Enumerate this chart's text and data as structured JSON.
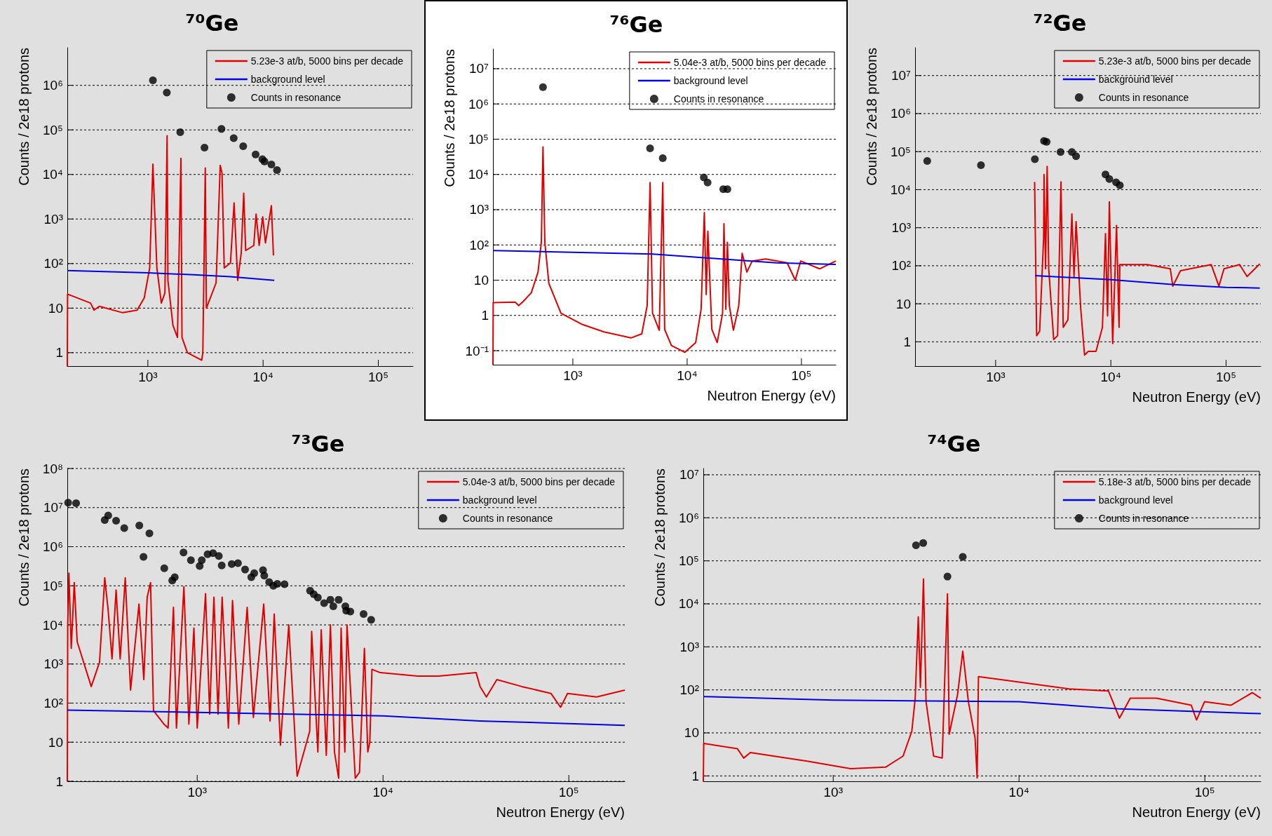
{
  "chart_data": [
    {
      "type": "line",
      "title": "⁷⁰Ge",
      "ylabel": "Counts / 2e18 protons",
      "log": "xy",
      "grid": "y",
      "legend": "top right",
      "xlim": [
        200,
        200000
      ],
      "ylim": [
        0.5,
        7000000
      ],
      "xticks": [
        {
          "value": 1000,
          "label": "10³"
        },
        {
          "value": 10000,
          "label": "10⁴"
        },
        {
          "value": 100000,
          "label": "10⁵"
        }
      ],
      "yticks": [
        {
          "value": 1,
          "label": "1"
        },
        {
          "value": 10,
          "label": "10"
        },
        {
          "value": 100,
          "label": "10²"
        },
        {
          "value": 1000,
          "label": "10³"
        },
        {
          "value": 10000,
          "label": "10⁴"
        },
        {
          "value": 100000,
          "label": "10⁵"
        },
        {
          "value": 1000000,
          "label": "10⁶"
        }
      ],
      "series": [
        {
          "name": "5.23e-3 at/b, 5000 bins per decade",
          "type": "line",
          "color": "#e00000",
          "x": [
            200,
            201,
            318,
            341,
            379,
            605,
            807,
            930,
            1037,
            1106,
            1197,
            1309,
            1406,
            1469,
            1493,
            1651,
            1806,
            1936,
            1978,
            2202,
            2933,
            2999,
            3150,
            3220,
            3910,
            4245,
            4400,
            4600,
            5210,
            5600,
            6020,
            6460,
            6790,
            7060,
            8300,
            8690,
            9240,
            9930,
            10480,
            11800,
            12300
          ],
          "values": [
            0.5,
            20.6,
            13,
            9,
            11,
            7.9,
            9,
            17,
            80,
            17000,
            80,
            13,
            22,
            74000,
            42,
            4.1,
            2.2,
            23000,
            2.2,
            1,
            0.68,
            1,
            14000,
            10,
            37,
            16000,
            10700,
            80,
            103,
            2300,
            42,
            173,
            3800,
            196,
            255,
            1290,
            255,
            1120,
            290,
            2000,
            152
          ]
        },
        {
          "name": "background level",
          "type": "line",
          "color": "#0000e0",
          "x": [
            200,
            1000,
            2500,
            5200,
            12500
          ],
          "values": [
            70,
            62,
            56,
            51,
            42
          ]
        },
        {
          "name": "Counts in resonance",
          "type": "scatter",
          "marker": "circle",
          "color": "#000000",
          "x": [
            1106,
            1460,
            1910,
            3100,
            4350,
            5560,
            6720,
            8610,
            9860,
            10280,
            11800,
            13200
          ],
          "values": [
            1300000,
            690000,
            89000,
            40000,
            105000,
            65000,
            43000,
            28000,
            22000,
            19500,
            16700,
            12500
          ]
        }
      ]
    },
    {
      "type": "line",
      "title": "⁷⁶Ge",
      "xlabel": "Neutron Energy (eV)",
      "ylabel": "Counts / 2e18 protons",
      "log": "xy",
      "grid": "y",
      "legend": "top right",
      "xlim": [
        200,
        200000
      ],
      "ylim": [
        0.04,
        36000000
      ],
      "xticks": [
        {
          "value": 1000,
          "label": "10³"
        },
        {
          "value": 10000,
          "label": "10⁴"
        },
        {
          "value": 100000,
          "label": "10⁵"
        }
      ],
      "yticks": [
        {
          "value": 0.1,
          "label": "10⁻¹"
        },
        {
          "value": 1,
          "label": "1"
        },
        {
          "value": 10,
          "label": "10"
        },
        {
          "value": 100,
          "label": "10²"
        },
        {
          "value": 1000,
          "label": "10³"
        },
        {
          "value": 10000,
          "label": "10⁴"
        },
        {
          "value": 100000,
          "label": "10⁵"
        },
        {
          "value": 1000000,
          "label": "10⁶"
        },
        {
          "value": 10000000,
          "label": "10⁷"
        }
      ],
      "series": [
        {
          "name": "5.04e-3 at/b, 5000 bins per decade",
          "type": "line",
          "color": "#e00000",
          "x": [
            200,
            201,
            313,
            336,
            368,
            433,
            496,
            530,
            548,
            569,
            617,
            787,
            1216,
            1876,
            3226,
            4010,
            4470,
            4740,
            4980,
            5700,
            6120,
            6360,
            7280,
            9550,
            11880,
            13250,
            14140,
            14690,
            15180,
            16450,
            18330,
            20420,
            21000,
            21800,
            22500,
            23400,
            25400,
            28300,
            30300,
            33300,
            37100,
            48600,
            75000,
            88300,
            98500,
            144000,
            200000
          ],
          "values": [
            0.04,
            2.3,
            2.4,
            1.9,
            2.5,
            4.4,
            17,
            118,
            60000,
            118,
            8.1,
            1.15,
            0.55,
            0.34,
            0.23,
            0.3,
            1.9,
            5900,
            1.15,
            0.38,
            5900,
            0.4,
            0.14,
            0.09,
            0.17,
            1.5,
            830,
            3.9,
            245,
            0.4,
            0.17,
            1.15,
            400,
            1.5,
            118,
            1.9,
            0.38,
            1.9,
            58,
            17,
            35,
            40,
            31,
            10,
            35,
            21,
            35
          ]
        },
        {
          "name": "background level",
          "type": "line",
          "color": "#0000e0",
          "x": [
            200,
            1000,
            5000,
            20000,
            60000,
            200000
          ],
          "values": [
            69,
            62,
            55,
            40,
            31,
            28
          ]
        },
        {
          "name": "Counts in resonance",
          "type": "scatter",
          "marker": "circle",
          "color": "#000000",
          "x": [
            548,
            4740,
            6120,
            14000,
            15100,
            20700,
            22500
          ],
          "values": [
            3000000,
            55000,
            29000,
            8200,
            5900,
            3800,
            3800
          ]
        }
      ]
    },
    {
      "type": "line",
      "title": "⁷²Ge",
      "xlabel": "Neutron Energy (eV)",
      "ylabel": "Counts / 2e18 protons",
      "log": "xy",
      "grid": "y",
      "legend": "top right",
      "xlim": [
        200,
        200000
      ],
      "ylim": [
        0.23,
        54000000
      ],
      "xticks": [
        {
          "value": 1000,
          "label": "10³"
        },
        {
          "value": 10000,
          "label": "10⁴"
        },
        {
          "value": 100000,
          "label": "10⁵"
        }
      ],
      "yticks": [
        {
          "value": 1,
          "label": "1"
        },
        {
          "value": 10,
          "label": "10"
        },
        {
          "value": 100,
          "label": "10²"
        },
        {
          "value": 1000,
          "label": "10³"
        },
        {
          "value": 10000,
          "label": "10⁴"
        },
        {
          "value": 100000,
          "label": "10⁵"
        },
        {
          "value": 1000000,
          "label": "10⁶"
        },
        {
          "value": 10000000,
          "label": "10⁷"
        }
      ],
      "series": [
        {
          "name": "5.23e-3 at/b, 5000 bins per decade",
          "type": "line",
          "color": "#e00000",
          "x": [
            2180,
            2270,
            2410,
            2610,
            2630,
            2710,
            2800,
            2890,
            3190,
            3450,
            3690,
            3860,
            4240,
            4590,
            4790,
            4990,
            5470,
            5910,
            6370,
            7430,
            8450,
            8980,
            9360,
            9700,
            10370,
            11200,
            11780,
            11960,
            12400,
            20700,
            32800,
            34500,
            40200,
            74300,
            86700,
            95900,
            131000,
            152000,
            196000
          ],
          "values": [
            16000,
            1.45,
            1.9,
            560,
            25000,
            83,
            41000,
            83,
            1.15,
            1.45,
            16000,
            2.4,
            3.8,
            2300,
            52,
            1450,
            7.8,
            0.45,
            0.56,
            0.56,
            2.4,
            700,
            4.8,
            4800,
            0.9,
            1150,
            2.4,
            107,
            107,
            107,
            83,
            29,
            74,
            107,
            29,
            83,
            107,
            52,
            112
          ]
        },
        {
          "name": "background level",
          "type": "line",
          "color": "#0000e0",
          "x": [
            2200,
            10000,
            35000,
            100000,
            196000
          ],
          "values": [
            55,
            43,
            32,
            27,
            26
          ]
        },
        {
          "name": "Counts in resonance",
          "type": "scatter",
          "marker": "circle",
          "color": "#000000",
          "x": [
            255,
            746,
            2190,
            2630,
            2770,
            3660,
            4590,
            4990,
            8980,
            9700,
            11100,
            11960
          ],
          "values": [
            57000,
            44000,
            63000,
            190000,
            180000,
            98000,
            98000,
            76000,
            25000,
            19000,
            15500,
            13000
          ]
        }
      ]
    },
    {
      "type": "line",
      "title": "⁷³Ge",
      "xlabel": "Neutron Energy (eV)",
      "ylabel": "Counts / 2e18 protons",
      "log": "xy",
      "grid": "y",
      "legend": "top right",
      "xlim": [
        200,
        200000
      ],
      "ylim": [
        1,
        100000000
      ],
      "xticks": [
        {
          "value": 1000,
          "label": "10³"
        },
        {
          "value": 10000,
          "label": "10⁴"
        },
        {
          "value": 100000,
          "label": "10⁵"
        }
      ],
      "yticks": [
        {
          "value": 1,
          "label": "1"
        },
        {
          "value": 10,
          "label": "10"
        },
        {
          "value": 100,
          "label": "10²"
        },
        {
          "value": 1000,
          "label": "10³"
        },
        {
          "value": 10000,
          "label": "10⁴"
        },
        {
          "value": 100000,
          "label": "10⁵"
        },
        {
          "value": 1000000,
          "label": "10⁶"
        },
        {
          "value": 10000000,
          "label": "10⁷"
        },
        {
          "value": 100000000,
          "label": "10⁸"
        }
      ],
      "series": [
        {
          "name": "5.04e-3 at/b, 5000 bins per decade",
          "type": "line",
          "color": "#e00000",
          "x": [
            200,
            201,
            204,
            210,
            218,
            226,
            269,
            298,
            318,
            332,
            348,
            366,
            385,
            410,
            438,
            486,
            516,
            538,
            561,
            582,
            662,
            697,
            745,
            773,
            848,
            902,
            960,
            1000,
            1109,
            1167,
            1230,
            1295,
            1362,
            1471,
            1549,
            1674,
            1857,
            2006,
            2280,
            2466,
            2597,
            2805,
            3110,
            3450,
            4030,
            4130,
            4460,
            4650,
            4950,
            5210,
            5480,
            5770,
            5950,
            6230,
            6400,
            7090,
            7470,
            7940,
            8280,
            8490,
            8720,
            9670,
            15400,
            19900,
            31700,
            33300,
            36000,
            41000,
            55800,
            80100,
            90200,
            98400,
            141000,
            200000
          ],
          "values": [
            1,
            10000,
            210000,
            2500,
            120000,
            3700,
            265,
            1100,
            160000,
            23000,
            1350,
            78000,
            1350,
            160000,
            215,
            34000,
            400,
            51000,
            120000,
            64,
            29,
            23,
            28000,
            23,
            95000,
            29,
            8300,
            23,
            63000,
            52,
            51000,
            52,
            51000,
            23,
            42000,
            29,
            28000,
            43,
            34000,
            35,
            19000,
            8.4,
            10000,
            1.35,
            19,
            6800,
            5.6,
            7500,
            4.6,
            10000,
            5.6,
            1.2,
            8300,
            5.6,
            10000,
            1.2,
            1.7,
            2500,
            5.6,
            10,
            730,
            600,
            490,
            490,
            600,
            265,
            144,
            400,
            265,
            177,
            78,
            177,
            144,
            215
          ]
        },
        {
          "name": "background level",
          "type": "line",
          "color": "#0000e0",
          "x": [
            200,
            1000,
            10000,
            33000,
            200000
          ],
          "values": [
            66,
            58,
            47,
            35,
            27
          ]
        },
        {
          "name": "Counts in resonance",
          "type": "scatter",
          "marker": "circle",
          "color": "#000000",
          "x": [
            202,
            223,
            318,
            332,
            366,
            405,
            488,
            514,
            553,
            665,
            734,
            757,
            844,
            925,
            1031,
            1058,
            1138,
            1217,
            1307,
            1355,
            1534,
            1657,
            1810,
            1955,
            2027,
            2260,
            2296,
            2440,
            2570,
            2700,
            2950,
            4050,
            4240,
            4460,
            4820,
            5210,
            5400,
            5770,
            6270,
            6340,
            6670,
            7860,
            8630
          ],
          "values": [
            13400000,
            12900000,
            4800000,
            6300000,
            4600000,
            3000000,
            3500000,
            550000,
            2200000,
            280000,
            137000,
            166000,
            710000,
            450000,
            320000,
            450000,
            640000,
            680000,
            580000,
            330000,
            360000,
            380000,
            260000,
            166000,
            210000,
            250000,
            182000,
            124000,
            100000,
            112000,
            110000,
            75000,
            61000,
            50000,
            36000,
            44000,
            30000,
            44000,
            30000,
            23000,
            22000,
            19000,
            13500
          ]
        }
      ]
    },
    {
      "type": "line",
      "title": "⁷⁴Ge",
      "xlabel": "Neutron Energy (eV)",
      "ylabel": "Counts / 2e18 protons",
      "log": "xy",
      "grid": "y",
      "legend": "top right",
      "xlim": [
        200,
        200000
      ],
      "ylim": [
        0.75,
        14000000
      ],
      "xticks": [
        {
          "value": 1000,
          "label": "10³"
        },
        {
          "value": 10000,
          "label": "10⁴"
        },
        {
          "value": 100000,
          "label": "10⁵"
        }
      ],
      "yticks": [
        {
          "value": 1,
          "label": "1"
        },
        {
          "value": 10,
          "label": "10"
        },
        {
          "value": 100,
          "label": "10²"
        },
        {
          "value": 1000,
          "label": "10³"
        },
        {
          "value": 10000,
          "label": "10⁴"
        },
        {
          "value": 100000,
          "label": "10⁵"
        },
        {
          "value": 1000000,
          "label": "10⁶"
        },
        {
          "value": 10000000,
          "label": "10⁷"
        }
      ],
      "series": [
        {
          "name": "5.18e-3 at/b, 5000 bins per decade",
          "type": "line",
          "color": "#e00000",
          "x": [
            200,
            201,
            305,
            330,
            358,
            723,
            1241,
            1915,
            2377,
            2650,
            2762,
            2870,
            2946,
            3060,
            3160,
            3470,
            3860,
            4120,
            4210,
            4670,
            4980,
            5340,
            5800,
            5950,
            6050,
            8250,
            18600,
            30300,
            32000,
            34700,
            39700,
            54900,
            84500,
            90200,
            99600,
            138000,
            180000,
            200000
          ],
          "values": [
            0.75,
            5.7,
            4.3,
            2.6,
            3.5,
            2.2,
            1.47,
            1.6,
            2.9,
            11,
            64,
            5000,
            115,
            38000,
            53,
            2.9,
            2.6,
            17000,
            9.3,
            78,
            790,
            53,
            7.6,
            0.9,
            204,
            170,
            105,
            94,
            53,
            22,
            64,
            64,
            44,
            20,
            53,
            44,
            86,
            64
          ]
        },
        {
          "name": "background level",
          "type": "line",
          "color": "#0000e0",
          "x": [
            200,
            1000,
            10000,
            35000,
            200000
          ],
          "values": [
            70,
            58,
            53,
            36,
            28
          ]
        },
        {
          "name": "Counts in resonance",
          "type": "scatter",
          "marker": "circle",
          "color": "#000000",
          "x": [
            2790,
            3050,
            4120,
            4980
          ],
          "values": [
            230000,
            260000,
            43000,
            124000
          ]
        }
      ]
    }
  ]
}
